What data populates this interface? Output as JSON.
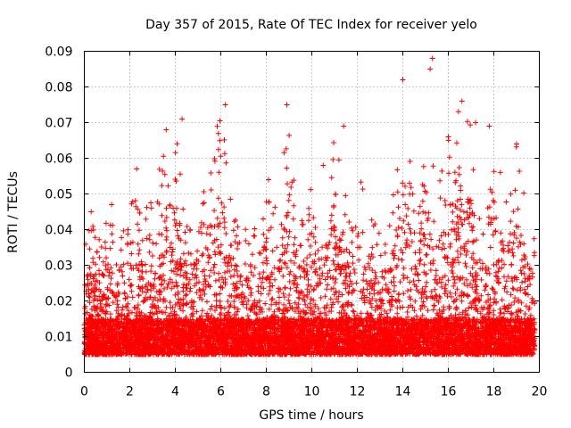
{
  "chart_data": {
    "type": "scatter",
    "title": "Day 357 of 2015, Rate Of TEC Index for receiver yelo",
    "xlabel": "GPS time / hours",
    "ylabel": "ROTI / TECUs",
    "xlim": [
      0,
      20
    ],
    "ylim": [
      0,
      0.09
    ],
    "xticks": [
      0,
      2,
      4,
      6,
      8,
      10,
      12,
      14,
      16,
      18,
      20
    ],
    "yticks": [
      0,
      0.01,
      0.02,
      0.03,
      0.04,
      0.05,
      0.06,
      0.07,
      0.08,
      0.09
    ],
    "ytick_labels": [
      "0",
      "0.01",
      "0.02",
      "0.03",
      "0.04",
      "0.05",
      "0.06",
      "0.07",
      "0.08",
      "0.09"
    ],
    "grid": true,
    "marker": "plus",
    "color": "#ff0000",
    "series": [
      {
        "name": "ROTI",
        "profile_hours": [
          0,
          0.5,
          1,
          1.5,
          2,
          2.5,
          3,
          3.5,
          4,
          4.5,
          5,
          5.5,
          6,
          6.5,
          7,
          7.5,
          8,
          8.5,
          9,
          9.5,
          10,
          10.5,
          11,
          11.5,
          12,
          12.5,
          13,
          13.5,
          14,
          14.5,
          15,
          15.5,
          16,
          16.5,
          17,
          17.5,
          18,
          18.5,
          19,
          19.5,
          19.8
        ],
        "profile_upper_roti": [
          0.045,
          0.04,
          0.047,
          0.035,
          0.056,
          0.045,
          0.05,
          0.068,
          0.071,
          0.042,
          0.045,
          0.06,
          0.075,
          0.045,
          0.04,
          0.045,
          0.054,
          0.045,
          0.075,
          0.045,
          0.058,
          0.05,
          0.069,
          0.053,
          0.06,
          0.045,
          0.04,
          0.045,
          0.082,
          0.048,
          0.088,
          0.05,
          0.066,
          0.075,
          0.07,
          0.045,
          0.069,
          0.05,
          0.064,
          0.045,
          0.04
        ],
        "highlights": [
          {
            "x": 0.3,
            "y": 0.045
          },
          {
            "x": 1.2,
            "y": 0.047
          },
          {
            "x": 2.3,
            "y": 0.057
          },
          {
            "x": 3.6,
            "y": 0.068
          },
          {
            "x": 4.3,
            "y": 0.071
          },
          {
            "x": 6.2,
            "y": 0.075
          },
          {
            "x": 8.1,
            "y": 0.054
          },
          {
            "x": 8.9,
            "y": 0.075
          },
          {
            "x": 10.5,
            "y": 0.058
          },
          {
            "x": 11.4,
            "y": 0.069
          },
          {
            "x": 14.0,
            "y": 0.082
          },
          {
            "x": 15.3,
            "y": 0.088
          },
          {
            "x": 15.2,
            "y": 0.085
          },
          {
            "x": 16.0,
            "y": 0.066
          },
          {
            "x": 16.6,
            "y": 0.076
          },
          {
            "x": 17.2,
            "y": 0.07
          },
          {
            "x": 17.8,
            "y": 0.069
          },
          {
            "x": 19.0,
            "y": 0.064
          }
        ],
        "baseline_range": [
          0.005,
          0.015
        ],
        "approx_point_count": 9000
      }
    ]
  }
}
